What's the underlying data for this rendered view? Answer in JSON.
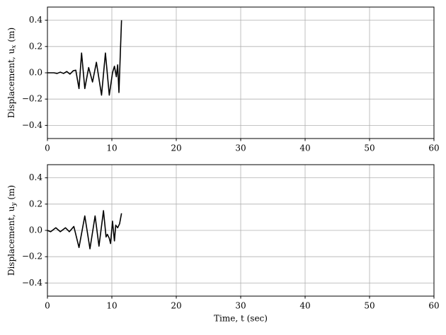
{
  "chart_data": [
    {
      "type": "line",
      "ylabel": "Displacement, u",
      "ylabel_sub": "x",
      "ylabel_unit": "(m)",
      "x": [
        0,
        0.5,
        1,
        1.5,
        2,
        2.5,
        3,
        3.5,
        4,
        4.4,
        4.9,
        5.3,
        5.8,
        6.4,
        7.0,
        7.6,
        8.4,
        9.0,
        9.6,
        10.1,
        10.4,
        10.7,
        10.9,
        11.1,
        11.5
      ],
      "series": [
        {
          "color": "#000000",
          "values": [
            0,
            0,
            0,
            -0.005,
            0.005,
            -0.005,
            0.01,
            -0.01,
            0.015,
            0.02,
            -0.12,
            0.15,
            -0.12,
            0.04,
            -0.07,
            0.08,
            -0.17,
            0.15,
            -0.17,
            0,
            0.05,
            -0.03,
            0.06,
            -0.15,
            0.4
          ]
        }
      ],
      "xlim": [
        0,
        60
      ],
      "xticks": [
        0,
        10,
        20,
        30,
        40,
        50,
        60
      ],
      "ylim": [
        -0.5,
        0.5
      ],
      "yticks": [
        {
          "value": -0.4,
          "label": "−0.4"
        },
        {
          "value": -0.2,
          "label": "−0.2"
        },
        {
          "value": 0,
          "label": "0.0"
        },
        0.2,
        0.4
      ],
      "grid": true
    },
    {
      "type": "line",
      "xlabel": "Time, t (sec)",
      "ylabel": "Displacement, u",
      "ylabel_sub": "y",
      "ylabel_unit": "(m)",
      "x": [
        0,
        0.5,
        1.3,
        2,
        2.8,
        3.4,
        4.1,
        4.9,
        5.8,
        6.6,
        7.4,
        8.0,
        8.7,
        9.1,
        9.3,
        9.6,
        9.8,
        10.1,
        10.4,
        10.6,
        10.9,
        11.2,
        11.5
      ],
      "series": [
        {
          "color": "#000000",
          "values": [
            0,
            -0.01,
            0.02,
            -0.01,
            0.02,
            -0.01,
            0.03,
            -0.13,
            0.11,
            -0.14,
            0.11,
            -0.12,
            0.15,
            -0.05,
            -0.03,
            -0.06,
            -0.1,
            0.07,
            -0.08,
            0.04,
            0.02,
            0.05,
            0.13
          ]
        }
      ],
      "xlim": [
        0,
        60
      ],
      "xticks": [
        0,
        10,
        20,
        30,
        40,
        50,
        60
      ],
      "ylim": [
        -0.5,
        0.5
      ],
      "yticks": [
        {
          "value": -0.4,
          "label": "−0.4"
        },
        {
          "value": -0.2,
          "label": "−0.2"
        },
        {
          "value": 0,
          "label": "0.0"
        },
        0.2,
        0.4
      ],
      "grid": true
    }
  ]
}
